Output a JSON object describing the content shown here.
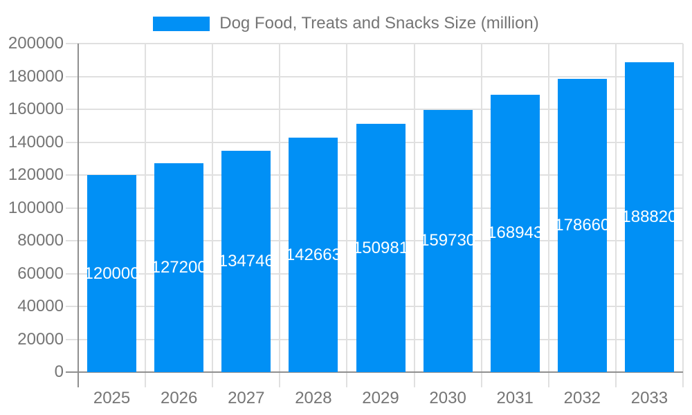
{
  "chart_data": {
    "type": "bar",
    "title": "Dog Food, Treats and Snacks Size (million)",
    "legend_entries": [
      "Dog Food, Treats and Snacks Size (million)"
    ],
    "legend_position": "top-center",
    "categories": [
      "2025",
      "2026",
      "2027",
      "2028",
      "2029",
      "2030",
      "2031",
      "2032",
      "2033"
    ],
    "values": [
      120000,
      127200,
      134746,
      142663,
      150981,
      159730,
      168943,
      178660,
      188820
    ],
    "bar_labels": [
      "120000",
      "127200",
      "134746",
      "142663",
      "150981",
      "159730",
      "168943",
      "178660",
      "188820"
    ],
    "xlabel": "",
    "ylabel": "",
    "ylim": [
      0,
      200000
    ],
    "ytick_step": 20000,
    "yticks": [
      0,
      20000,
      40000,
      60000,
      80000,
      100000,
      120000,
      140000,
      160000,
      180000,
      200000
    ],
    "grid": true,
    "colors": {
      "bar": "#0190f5",
      "bar_label": "#ffffff",
      "axis_label": "#757575",
      "axis_line": "#8f8f8f",
      "gridline": "#e0e0e0",
      "background": "#ffffff"
    }
  }
}
